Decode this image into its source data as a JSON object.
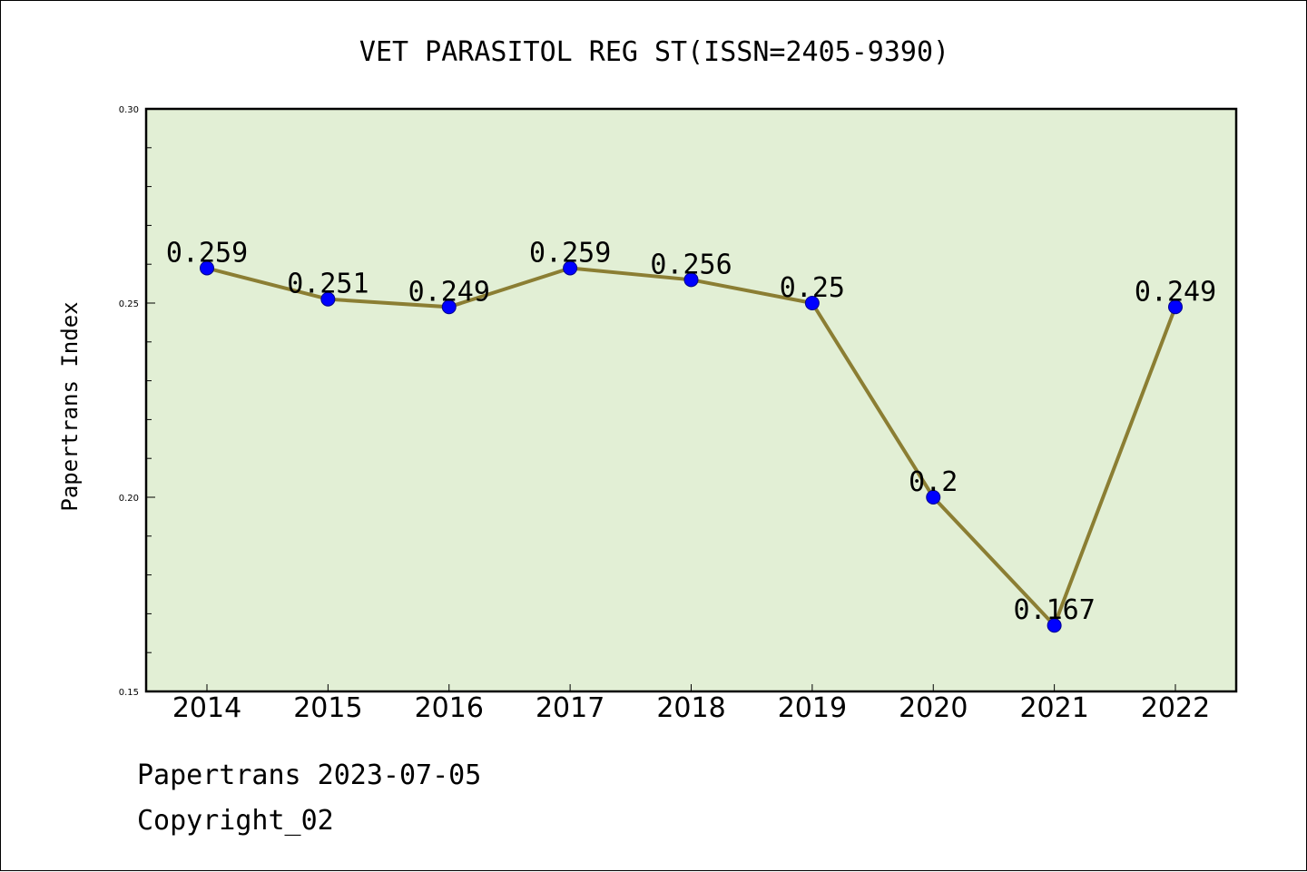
{
  "chart_data": {
    "type": "line",
    "title": "VET PARASITOL REG ST(ISSN=2405-9390)",
    "xlabel": "",
    "ylabel": "Papertrans Index",
    "categories": [
      "2014",
      "2015",
      "2016",
      "2017",
      "2018",
      "2019",
      "2020",
      "2021",
      "2022"
    ],
    "series": [
      {
        "values": [
          0.259,
          0.251,
          0.249,
          0.259,
          0.256,
          0.25,
          0.2,
          0.167,
          0.249
        ],
        "labels": [
          "0.259",
          "0.251",
          "0.249",
          "0.259",
          "0.256",
          "0.25",
          "0.2",
          "0.167",
          "0.249"
        ]
      }
    ],
    "ylim": [
      0.15,
      0.3
    ],
    "yticks": [
      "0.15",
      "0.20",
      "0.25",
      "0.30"
    ],
    "grid": false,
    "legend": "none",
    "colors": {
      "plot_background": "#e2efd5",
      "line": "#8b7e33",
      "marker": "#0000ff"
    }
  },
  "footer": {
    "date_line": "Papertrans 2023-07-05",
    "copyright": "Copyright_02"
  }
}
